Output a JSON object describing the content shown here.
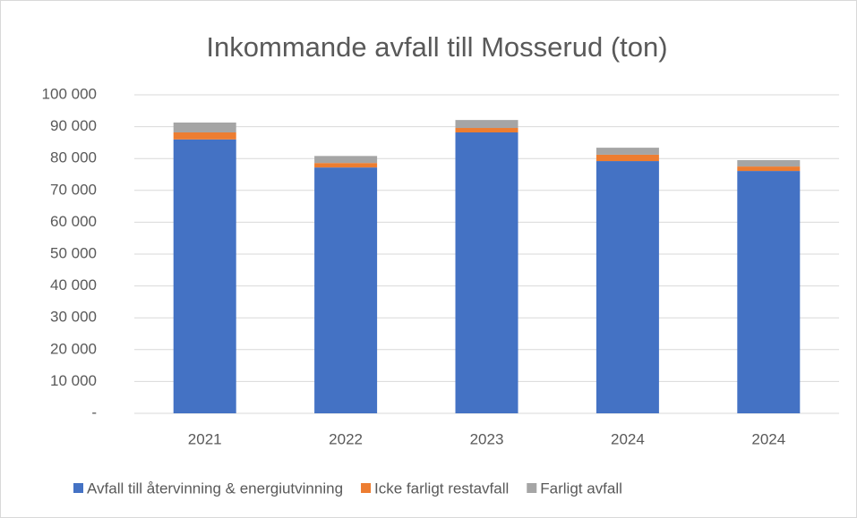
{
  "chart_data": {
    "type": "stacked_bar",
    "title": "Inkommande avfall till Mosserud (ton)",
    "categories": [
      "2021",
      "2022",
      "2023",
      "2024",
      "2024"
    ],
    "series": [
      {
        "name": "Avfall till återvinning & energiutvinning",
        "color": "#4472c4",
        "values": [
          86000,
          77200,
          88200,
          79200,
          76100
        ]
      },
      {
        "name": "Icke farligt restavfall",
        "color": "#ed7d31",
        "values": [
          2200,
          1400,
          1400,
          2000,
          1400
        ]
      },
      {
        "name": "Farligt avfall",
        "color": "#a5a5a5",
        "values": [
          3100,
          2200,
          2500,
          2200,
          2000
        ]
      }
    ],
    "ylim": [
      0,
      100000
    ],
    "yticks": [
      {
        "value": 0,
        "label": "-"
      },
      {
        "value": 10000,
        "label": "10 000"
      },
      {
        "value": 20000,
        "label": "20 000"
      },
      {
        "value": 30000,
        "label": "30 000"
      },
      {
        "value": 40000,
        "label": "40 000"
      },
      {
        "value": 50000,
        "label": "50 000"
      },
      {
        "value": 60000,
        "label": "60 000"
      },
      {
        "value": 70000,
        "label": "70 000"
      },
      {
        "value": 80000,
        "label": "80 000"
      },
      {
        "value": 90000,
        "label": "90 000"
      },
      {
        "value": 100000,
        "label": "100 000"
      }
    ],
    "grid": true,
    "legend": "bottom"
  }
}
